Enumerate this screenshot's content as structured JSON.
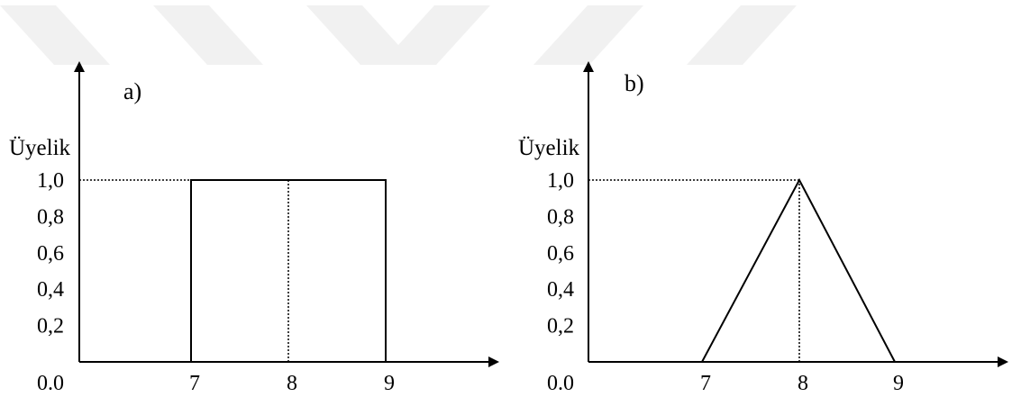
{
  "watermark": {
    "color": "#f1f1f1"
  },
  "chart_data": [
    {
      "type": "line",
      "panel_label": "a)",
      "ylabel": "Üyelik",
      "xlabel": "",
      "y_ticks": [
        "0.0",
        "0,2",
        "0,4",
        "0,6",
        "0,8",
        "1,0"
      ],
      "x_ticks": [
        "7",
        "8",
        "9"
      ],
      "xlim": [
        6,
        10
      ],
      "ylim": [
        0,
        1.0
      ],
      "series": [
        {
          "x": [
            7,
            7,
            9,
            9
          ],
          "y": [
            0,
            1.0,
            1.0,
            0
          ]
        }
      ],
      "reference_lines": [
        {
          "from": [
            6,
            1.0
          ],
          "to": [
            7,
            1.0
          ]
        },
        {
          "from": [
            8,
            0
          ],
          "to": [
            8,
            1.0
          ]
        }
      ]
    },
    {
      "type": "line",
      "panel_label": "b)",
      "ylabel": "Üyelik",
      "xlabel": "",
      "y_ticks": [
        "0.0",
        "0,2",
        "0,4",
        "0,6",
        "0,8",
        "1,0"
      ],
      "x_ticks": [
        "7",
        "8",
        "9"
      ],
      "xlim": [
        6,
        10
      ],
      "ylim": [
        0,
        1.0
      ],
      "series": [
        {
          "x": [
            7,
            8,
            9
          ],
          "y": [
            0,
            1.0,
            0
          ]
        }
      ],
      "reference_lines": [
        {
          "from": [
            6,
            1.0
          ],
          "to": [
            8,
            1.0
          ]
        },
        {
          "from": [
            8,
            0
          ],
          "to": [
            8,
            1.0
          ]
        }
      ]
    }
  ]
}
